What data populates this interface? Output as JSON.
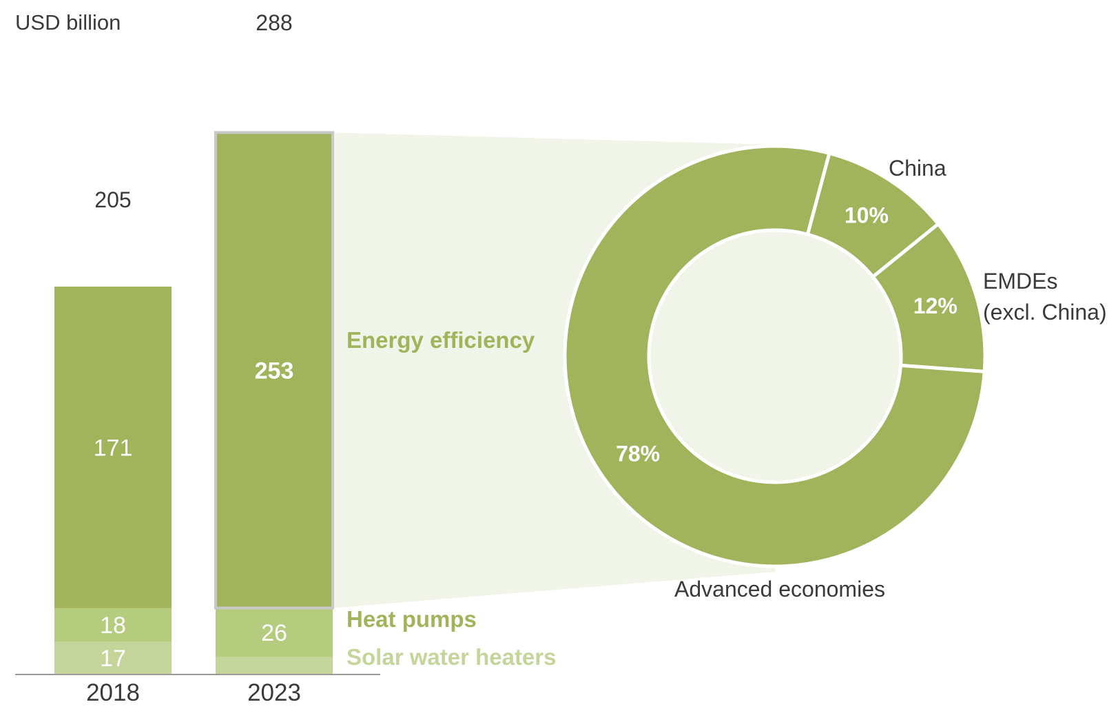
{
  "chart_data": [
    {
      "type": "bar",
      "stacked": true,
      "ylabel": "USD billion",
      "categories": [
        "2018",
        "2023"
      ],
      "totals": [
        205,
        288
      ],
      "series": [
        {
          "name": "Solar water heaters",
          "values": [
            17,
            9
          ],
          "color": "#c5d59a",
          "labels": [
            "17",
            ""
          ]
        },
        {
          "name": "Heat pumps",
          "values": [
            18,
            26
          ],
          "color": "#b5cb7e",
          "labels": [
            "18",
            "26"
          ]
        },
        {
          "name": "Energy efficiency",
          "values": [
            171,
            253
          ],
          "color": "#a1b45c",
          "labels": [
            "171",
            "253"
          ]
        }
      ],
      "label_colors": {
        "Energy efficiency": "#a1b45c",
        "Heat pumps": "#a1b45c",
        "Solar water heaters": "#c5d59a"
      },
      "highlight": {
        "category": "2023",
        "series": "Energy efficiency"
      }
    },
    {
      "type": "pie",
      "donut": true,
      "slices": [
        {
          "name": "China",
          "value": 10,
          "label": "10%"
        },
        {
          "name": "EMDEs (excl. China)",
          "value": 12,
          "label": "12%"
        },
        {
          "name": "Advanced economies",
          "value": 78,
          "label": "78%"
        }
      ],
      "slice_color": "#a1b45c",
      "background_color": "#f1f4e8",
      "callout_text": [
        "China",
        "EMDEs",
        "(excl. China)",
        "Advanced economies"
      ]
    }
  ],
  "colors": {
    "text": "#3a3a3a",
    "axis": "#9a9a9a",
    "highlight_border": "#c8c8c8",
    "connector": "#f1f4e8"
  }
}
